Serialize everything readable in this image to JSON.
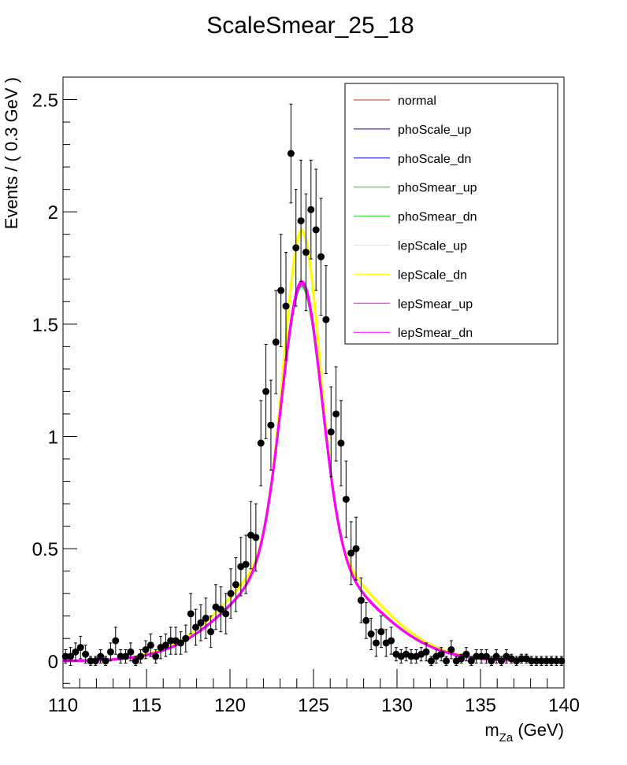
{
  "chart_data": {
    "type": "scatter",
    "title": "ScaleSmear_25_18",
    "ylabel": "Events / ( 0.3 GeV )",
    "xlabel": {
      "main": "m",
      "sub": "Za",
      "unit": "(GeV)"
    },
    "xlim": [
      110,
      140
    ],
    "ylim": [
      -0.12,
      2.6
    ],
    "xticks": [
      110,
      115,
      120,
      125,
      130,
      135,
      140
    ],
    "yticks": [
      0,
      0.5,
      1,
      1.5,
      2,
      2.5
    ],
    "xtick_labels": [
      "110",
      "115",
      "120",
      "125",
      "130",
      "135",
      "140"
    ],
    "ytick_labels": [
      "0",
      "0.5",
      "1",
      "1.5",
      "2",
      "2.5"
    ],
    "grid": false,
    "legend_position": "top-right",
    "data_points": {
      "x": [
        110.15,
        110.45,
        110.75,
        111.05,
        111.35,
        111.65,
        111.95,
        112.25,
        112.55,
        112.85,
        113.15,
        113.45,
        113.75,
        114.05,
        114.35,
        114.65,
        114.95,
        115.25,
        115.55,
        115.85,
        116.15,
        116.45,
        116.75,
        117.05,
        117.35,
        117.65,
        117.95,
        118.25,
        118.55,
        118.85,
        119.15,
        119.45,
        119.75,
        120.05,
        120.35,
        120.65,
        120.95,
        121.25,
        121.55,
        121.85,
        122.15,
        122.45,
        122.75,
        123.05,
        123.35,
        123.65,
        123.95,
        124.25,
        124.55,
        124.85,
        125.15,
        125.45,
        125.75,
        126.05,
        126.35,
        126.65,
        126.95,
        127.25,
        127.55,
        127.85,
        128.15,
        128.45,
        128.75,
        129.05,
        129.35,
        129.65,
        129.95,
        130.25,
        130.55,
        130.85,
        131.15,
        131.45,
        131.75,
        132.05,
        132.35,
        132.65,
        132.95,
        133.25,
        133.55,
        133.85,
        134.15,
        134.45,
        134.75,
        135.05,
        135.35,
        135.65,
        135.95,
        136.25,
        136.55,
        136.85,
        137.15,
        137.45,
        137.75,
        138.05,
        138.35,
        138.65,
        138.95,
        139.25,
        139.55,
        139.85
      ],
      "y": [
        0.02,
        0.02,
        0.04,
        0.06,
        0.03,
        0,
        0,
        0.02,
        0,
        0.04,
        0.09,
        0.02,
        0.02,
        0.04,
        0,
        0.02,
        0.05,
        0.07,
        0.02,
        0.06,
        0.07,
        0.09,
        0.09,
        0.08,
        0.1,
        0.21,
        0.15,
        0.17,
        0.19,
        0.13,
        0.24,
        0.23,
        0.21,
        0.3,
        0.34,
        0.42,
        0.43,
        0.56,
        0.55,
        0.97,
        1.2,
        1.05,
        1.42,
        1.65,
        1.58,
        2.26,
        1.84,
        1.96,
        1.82,
        2.01,
        1.92,
        1.8,
        1.52,
        1.02,
        1.1,
        0.97,
        0.72,
        0.48,
        0.5,
        0.27,
        0.18,
        0.12,
        0.08,
        0.13,
        0.08,
        0.09,
        0.03,
        0.02,
        0.03,
        0.02,
        0.02,
        0.03,
        0.04,
        0,
        0.02,
        0.03,
        0,
        0.05,
        0,
        0.01,
        0.03,
        0,
        0.02,
        0.02,
        0.02,
        0,
        0.02,
        0,
        0.02,
        0.01,
        0,
        0.01,
        0.01,
        0,
        0,
        0,
        0,
        0,
        0,
        0
      ],
      "yerr": [
        0.03,
        0.04,
        0.04,
        0.05,
        0.04,
        0.02,
        0.02,
        0.03,
        0.02,
        0.04,
        0.06,
        0.03,
        0.03,
        0.04,
        0.02,
        0.03,
        0.04,
        0.05,
        0.03,
        0.05,
        0.05,
        0.06,
        0.06,
        0.05,
        0.06,
        0.09,
        0.08,
        0.08,
        0.09,
        0.07,
        0.1,
        0.1,
        0.09,
        0.11,
        0.12,
        0.13,
        0.13,
        0.15,
        0.15,
        0.19,
        0.21,
        0.2,
        0.23,
        0.25,
        0.24,
        0.22,
        0.26,
        0.27,
        0.26,
        0.22,
        0.27,
        0.26,
        0.24,
        0.2,
        0.21,
        0.19,
        0.17,
        0.14,
        0.14,
        0.1,
        0.08,
        0.07,
        0.06,
        0.07,
        0.06,
        0.06,
        0.03,
        0.03,
        0.03,
        0.03,
        0.03,
        0.03,
        0.04,
        0.02,
        0.03,
        0.03,
        0.02,
        0.04,
        0.02,
        0.02,
        0.03,
        0.02,
        0.03,
        0.03,
        0.03,
        0.02,
        0.03,
        0.02,
        0.03,
        0.02,
        0.02,
        0.02,
        0.02,
        0.02,
        0.02,
        0.02,
        0.02,
        0.02,
        0.02,
        0.02
      ]
    },
    "curve_model": {
      "mean": 124.3,
      "tail_amplitude": 0.27,
      "tail_sigma": 3.9
    },
    "series": [
      {
        "name": "normal",
        "color": "#cc3333",
        "peak": 1.92,
        "sigma": 1.06,
        "width": 1.5
      },
      {
        "name": "phoScale_up",
        "color": "#0000ee",
        "peak": 1.92,
        "sigma": 1.06,
        "width": 1.5
      },
      {
        "name": "phoScale_dn",
        "color": "#0000ee",
        "peak": 1.92,
        "sigma": 1.06,
        "width": 1.5
      },
      {
        "name": "phoSmear_up",
        "color": "#22cc22",
        "peak": 1.67,
        "sigma": 1.2,
        "width": 3
      },
      {
        "name": "phoSmear_dn",
        "color": "#22cc22",
        "peak": 1.67,
        "sigma": 1.2,
        "width": 3
      },
      {
        "name": "lepScale_up",
        "color": "#ffff00",
        "peak": 1.92,
        "sigma": 1.06,
        "width": 3
      },
      {
        "name": "lepScale_dn",
        "color": "#ffff00",
        "peak": 1.91,
        "sigma": 1.07,
        "width": 3
      },
      {
        "name": "lepSmear_up",
        "color": "#ff00ff",
        "peak": 1.69,
        "sigma": 1.18,
        "width": 3
      },
      {
        "name": "lepSmear_dn",
        "color": "#ff00ff",
        "peak": 1.68,
        "sigma": 1.19,
        "width": 3
      }
    ]
  }
}
